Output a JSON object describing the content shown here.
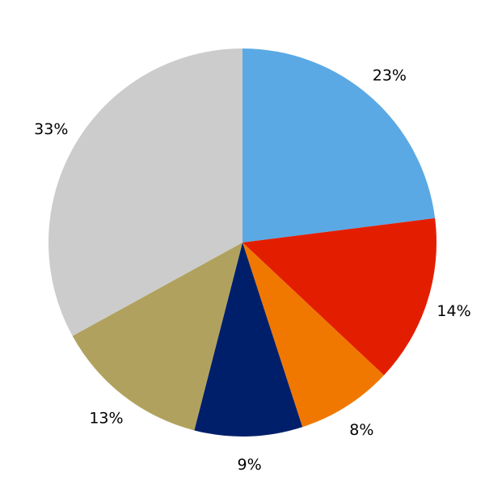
{
  "chart_data": {
    "type": "pie",
    "start_angle": "top",
    "direction": "clockwise",
    "values": [
      23,
      14,
      8,
      9,
      13,
      33
    ],
    "labels": [
      "23%",
      "14%",
      "8%",
      "9%",
      "13%",
      "33%"
    ],
    "colors": [
      "#5aa9e4",
      "#e31e00",
      "#f07800",
      "#001f6b",
      "#b0a25e",
      "#cccccc"
    ],
    "title": "",
    "legend": "none"
  }
}
